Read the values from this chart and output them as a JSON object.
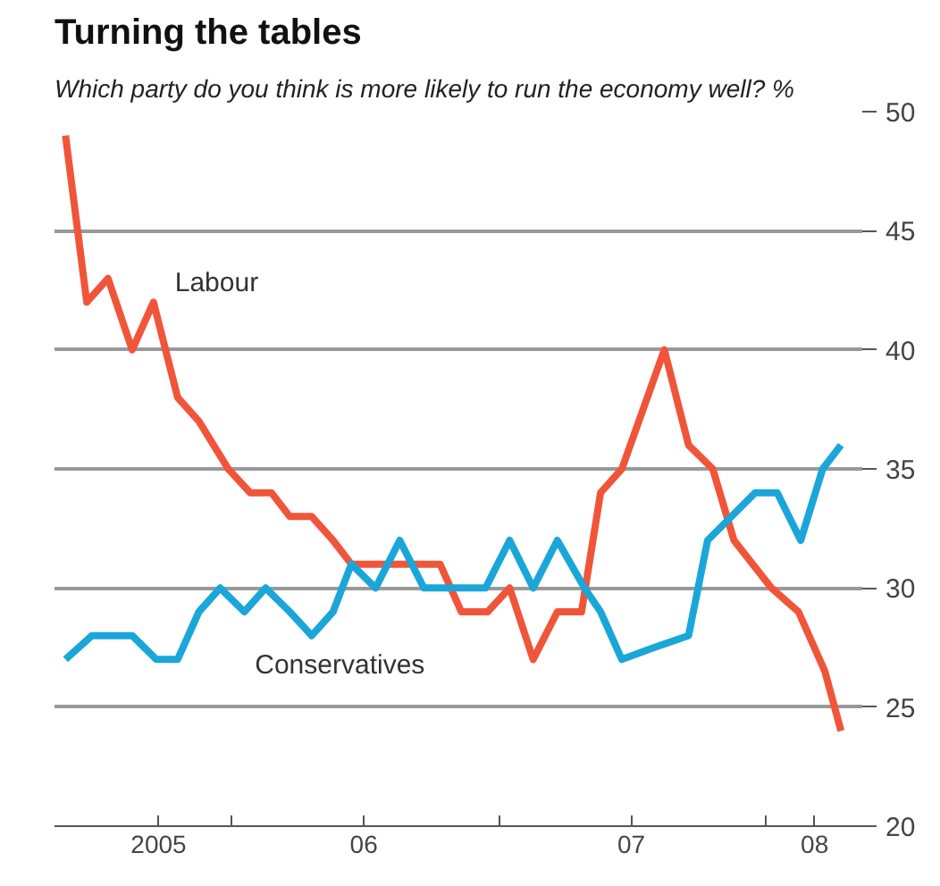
{
  "chart_data": {
    "type": "line",
    "title": "Turning the tables",
    "subtitle": "Which party do you think is more likely to run the economy well?  %",
    "xlim": [
      "2005-05-05",
      "2008-05-11"
    ],
    "xticks": [
      {
        "value": "2006-01-01",
        "label": null
      },
      {
        "value": "2007-01-01",
        "label": null
      },
      {
        "value": "2008-01-01",
        "label": null
      },
      {
        "value": "2005-09-24",
        "label": "2005"
      },
      {
        "value": "2006-07-01",
        "label": "06"
      },
      {
        "value": "2007-07-01",
        "label": "07"
      },
      {
        "value": "2008-03-07",
        "label": "08"
      }
    ],
    "ylim": [
      20,
      50
    ],
    "yticks": [
      20,
      25,
      30,
      35,
      40,
      45,
      50
    ],
    "grid": "y",
    "line_style": "solid",
    "series": [
      {
        "name": "Labour",
        "color": "#f0553a",
        "x": [
          "2005-05-20",
          "2005-06-18",
          "2005-07-17",
          "2005-08-19",
          "2005-09-17",
          "2005-10-20",
          "2005-11-18",
          "2005-12-28",
          "2006-01-27",
          "2006-02-25",
          "2006-03-22",
          "2006-04-21",
          "2006-05-20",
          "2006-06-14",
          "2006-07-21",
          "2006-10-13",
          "2006-11-11",
          "2006-12-17",
          "2007-01-16",
          "2007-02-17",
          "2007-03-22",
          "2007-04-24",
          "2007-05-20",
          "2007-06-18",
          "2007-08-15",
          "2007-09-17",
          "2007-10-20",
          "2007-11-18",
          "2008-01-08",
          "2008-02-14",
          "2008-03-21",
          "2008-04-12"
        ],
        "values": [
          49,
          42,
          43,
          40,
          42,
          38,
          37,
          35,
          34,
          34,
          33,
          33,
          32,
          31,
          31,
          31,
          29,
          29,
          30,
          27,
          29,
          29,
          34,
          35,
          40,
          36,
          35,
          32,
          30,
          29,
          26.5,
          24
        ]
      },
      {
        "name": "Conservatives",
        "color": "#1aa6d9",
        "x": [
          "2005-05-20",
          "2005-06-25",
          "2005-08-19",
          "2005-09-21",
          "2005-10-20",
          "2005-11-18",
          "2005-12-17",
          "2006-01-19",
          "2006-02-17",
          "2006-03-22",
          "2006-04-21",
          "2006-05-20",
          "2006-06-14",
          "2006-07-17",
          "2006-08-19",
          "2006-09-21",
          "2006-11-04",
          "2006-12-14",
          "2007-01-16",
          "2007-02-17",
          "2007-03-22",
          "2007-04-28",
          "2007-05-20",
          "2007-06-18",
          "2007-08-01",
          "2007-09-17",
          "2007-10-13",
          "2007-12-17",
          "2008-01-16",
          "2008-02-17",
          "2008-03-18",
          "2008-04-12"
        ],
        "values": [
          27,
          28,
          28,
          27,
          27,
          29,
          30,
          29,
          30,
          29,
          28,
          29,
          31,
          30,
          32,
          30,
          30,
          30,
          32,
          30,
          32,
          30,
          29,
          27,
          27.5,
          28,
          32,
          34,
          34,
          32,
          35,
          36
        ]
      }
    ]
  }
}
